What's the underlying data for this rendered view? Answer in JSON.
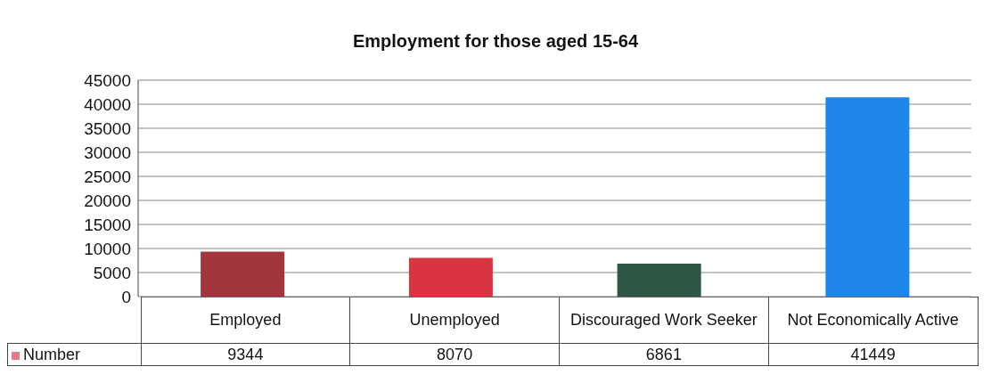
{
  "chart_data": {
    "type": "bar",
    "title": "Employment for those aged 15-64",
    "categories": [
      "Employed",
      "Unemployed",
      "Discouraged Work Seeker",
      "Not Economically Active"
    ],
    "series": [
      {
        "name": "Number",
        "color": "#e8788e",
        "colors": [
          "#a3363d",
          "#d9343f",
          "#2b5744",
          "#1f86ea"
        ],
        "values": [
          9344,
          8070,
          6861,
          41449
        ]
      }
    ],
    "ylim": [
      0,
      45000
    ],
    "yticks": [
      0,
      5000,
      10000,
      15000,
      20000,
      25000,
      30000,
      35000,
      40000,
      45000
    ],
    "grid": "y",
    "legend": "bottom left",
    "data_labels": true
  }
}
